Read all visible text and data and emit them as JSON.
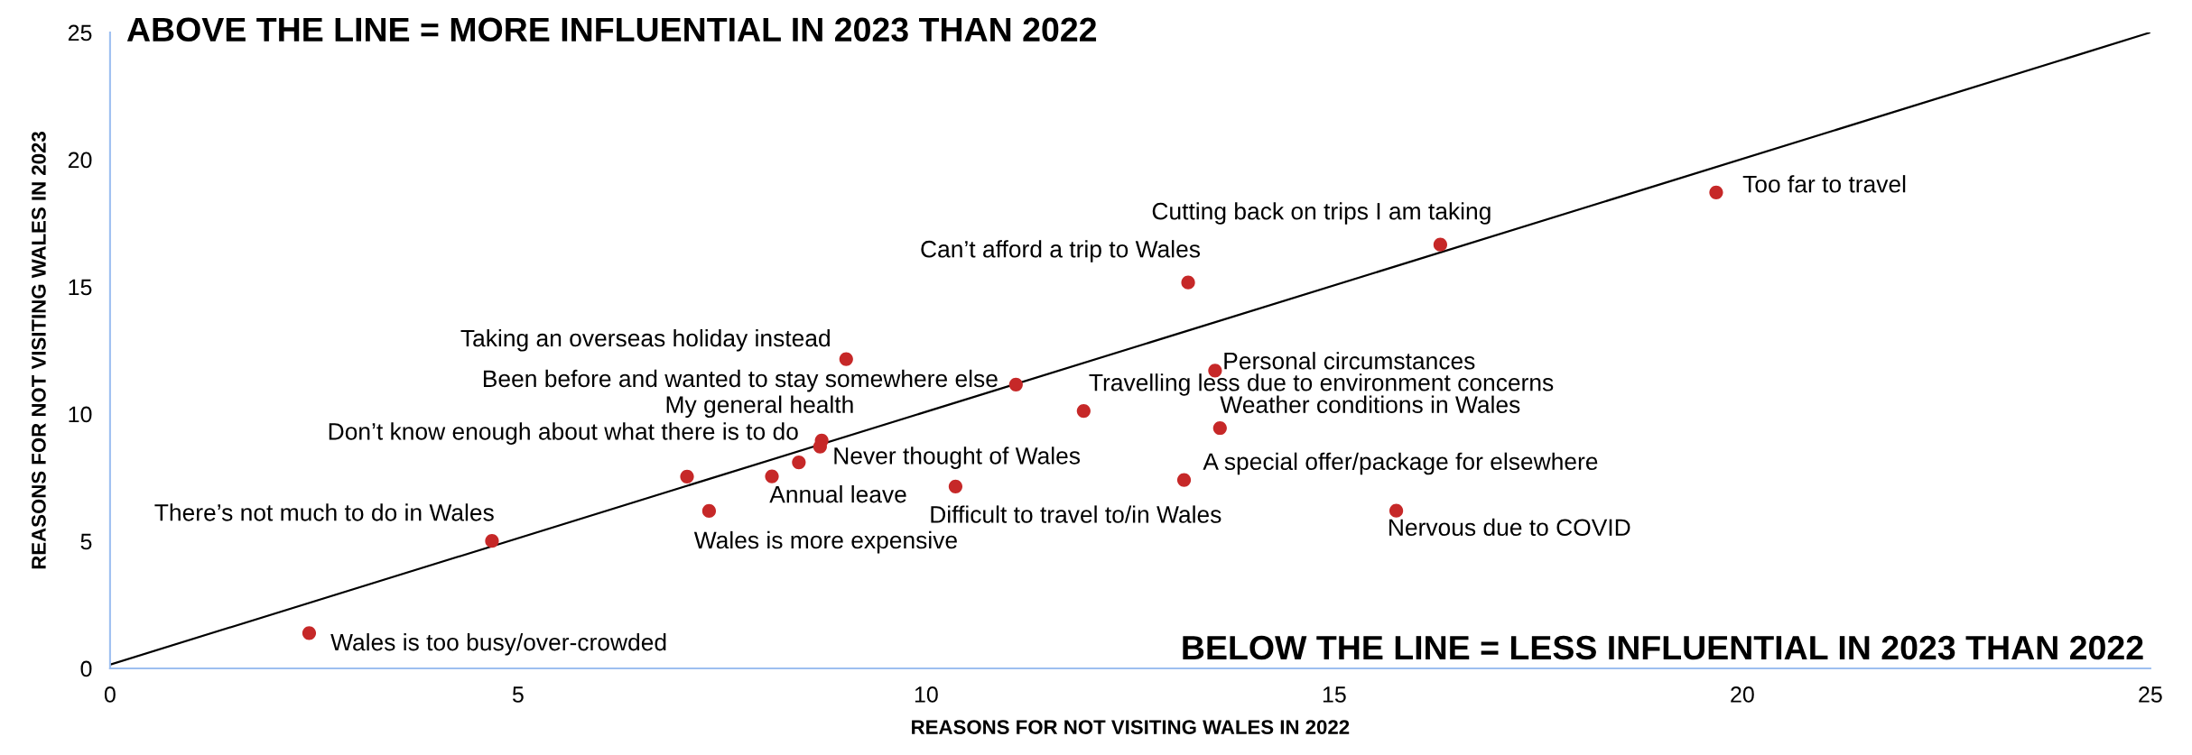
{
  "chart_data": {
    "type": "scatter",
    "xlabel": "REASONS FOR NOT VISITING WALES IN 2022",
    "ylabel": "REASONS FOR NOT VISITING WALES IN 2023",
    "xlim": [
      0,
      25
    ],
    "ylim": [
      0,
      25
    ],
    "xticks": [
      0,
      5,
      10,
      15,
      20,
      25
    ],
    "yticks": [
      0,
      5,
      10,
      15,
      20,
      25
    ],
    "grid": false,
    "legend": false,
    "marker": "circle",
    "series": [
      {
        "type": "line",
        "marker": "none",
        "color": "#000000",
        "x": [
          0,
          25
        ],
        "values": [
          0.15,
          25
        ]
      },
      {
        "color": "#c62828",
        "x": [
          19.68,
          16.3,
          13.21,
          9.02,
          11.1,
          8.72,
          8.44,
          8.7,
          8.11,
          7.34,
          10.36,
          4.68,
          2.44,
          13.54,
          11.93,
          13.6,
          13.16,
          15.76,
          7.07
        ],
        "values": [
          18.71,
          16.66,
          15.17,
          12.16,
          11.16,
          8.96,
          8.1,
          8.72,
          7.55,
          6.19,
          7.15,
          5.01,
          1.39,
          11.71,
          10.12,
          9.45,
          7.41,
          6.2,
          7.54
        ]
      }
    ],
    "annotations": [
      "ABOVE THE LINE = MORE INFLUENTIAL IN 2023 THAN 2022",
      "BELOW THE LINE = LESS INFLUENTIAL IN 2023 THAN 2022",
      {
        "text": "Too far to travel",
        "x": 19.68,
        "y": 18.71
      },
      {
        "text": "Cutting back on trips I am taking",
        "x": 16.3,
        "y": 16.66
      },
      {
        "text": "Can’t afford a trip to Wales",
        "x": 13.21,
        "y": 15.17
      },
      {
        "text": "Taking an overseas holiday instead",
        "x": 9.02,
        "y": 12.16
      },
      {
        "text": "Been before and wanted to stay somewhere else",
        "x": 11.1,
        "y": 11.16
      },
      {
        "text": "My general health",
        "x": 8.72,
        "y": 8.96
      },
      {
        "text": "Don’t know enough about what there is to do",
        "x": 8.44,
        "y": 8.1
      },
      {
        "text": "Never thought of Wales",
        "x": 8.7,
        "y": 8.72
      },
      {
        "text": "Annual leave",
        "x": 8.11,
        "y": 7.55
      },
      {
        "text": "Wales is more expensive",
        "x": 7.34,
        "y": 6.19
      },
      {
        "text": "Difficult to travel to/in Wales",
        "x": 10.36,
        "y": 7.15
      },
      {
        "text": "There’s not much to do in Wales",
        "x": 4.68,
        "y": 5.01
      },
      {
        "text": "Wales is too busy/over-crowded",
        "x": 2.44,
        "y": 1.39
      },
      {
        "text": "Personal circumstances",
        "x": 13.54,
        "y": 11.71
      },
      {
        "text": "Travelling less due to environment concerns",
        "x": 11.93,
        "y": 10.12
      },
      {
        "text": "Weather conditions in Wales",
        "x": 13.6,
        "y": 9.45
      },
      {
        "text": "A special offer/package for elsewhere",
        "x": 13.16,
        "y": 7.41
      },
      {
        "text": "Nervous due to COVID",
        "x": 15.76,
        "y": 6.2
      }
    ]
  }
}
